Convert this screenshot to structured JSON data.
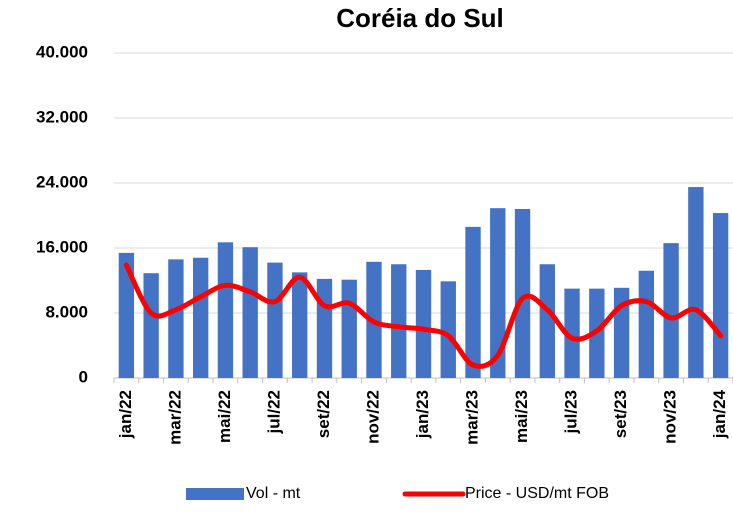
{
  "chart_data": {
    "type": "bar+line",
    "title": "Coréia do Sul",
    "categories": [
      "jan/22",
      null,
      "mar/22",
      null,
      "mai/22",
      null,
      "jul/22",
      null,
      "set/22",
      null,
      "nov/22",
      null,
      "jan/23",
      null,
      "mar/23",
      null,
      "mai/23",
      null,
      "jul/23",
      null,
      "set/23",
      null,
      "nov/23",
      null,
      "jan/24"
    ],
    "series": [
      {
        "name": "Vol - mt",
        "type": "bar",
        "color": "#4472c4",
        "values": [
          15400,
          12900,
          14600,
          14800,
          16700,
          16100,
          14200,
          13000,
          12200,
          12100,
          14300,
          14000,
          13300,
          11900,
          18600,
          20900,
          20800,
          14000,
          11000,
          11000,
          11100,
          13200,
          16600,
          23500,
          20300
        ]
      },
      {
        "name": "Price - USD/mt FOB",
        "type": "line",
        "color": "#ff0000",
        "values": [
          13900,
          8000,
          8400,
          10000,
          11400,
          10600,
          9400,
          12400,
          8900,
          9200,
          6900,
          6300,
          6000,
          5200,
          1600,
          2800,
          9800,
          8400,
          4900,
          5800,
          8900,
          9400,
          7400,
          8400,
          5200
        ]
      }
    ],
    "ylim": [
      0,
      40000
    ],
    "yticks": [
      0,
      {
        "value": 8000,
        "label": "8.000"
      },
      {
        "value": 16000,
        "label": "16.000"
      },
      {
        "value": 24000,
        "label": "24.000"
      },
      {
        "value": 32000,
        "label": "32.000"
      },
      {
        "value": 40000,
        "label": "40.000"
      }
    ],
    "grid": true,
    "legend": "bottom"
  }
}
